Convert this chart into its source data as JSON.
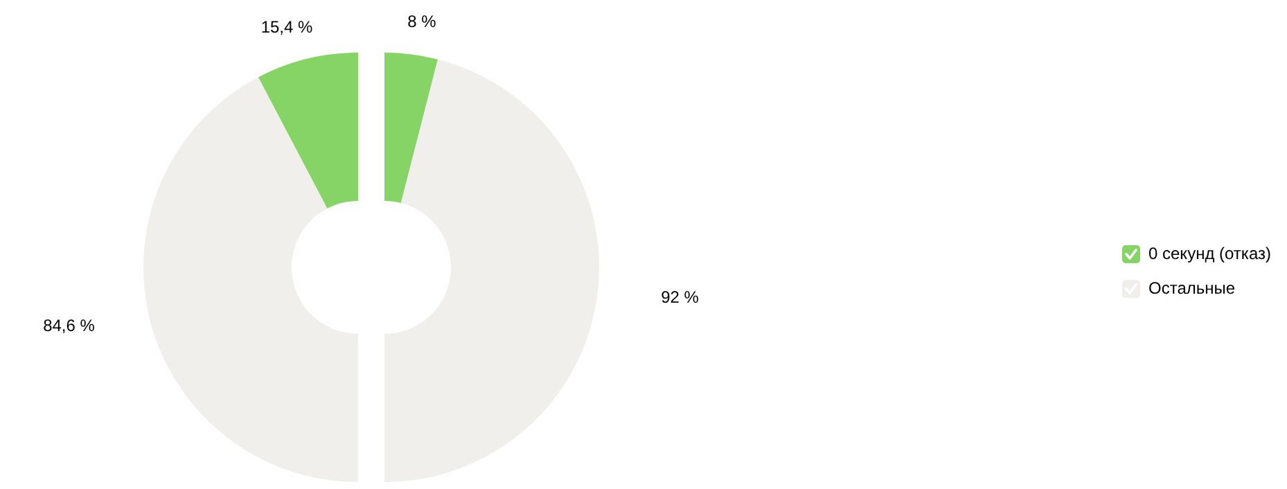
{
  "chart_data": [
    {
      "type": "donut",
      "categories": [
        "0 секунд (отказ)",
        "Остальные"
      ],
      "values": [
        15.4,
        84.6
      ],
      "colors": [
        "#85d465",
        "#f0efeb"
      ],
      "value_labels": [
        "15,4 %",
        "84,6 %"
      ],
      "legend": "right"
    },
    {
      "type": "donut",
      "categories": [
        null,
        null
      ],
      "values": [
        8,
        92
      ],
      "colors": [
        "#85d465",
        "#f0efeb"
      ],
      "value_labels": [
        "8 %",
        "92 %"
      ]
    }
  ]
}
